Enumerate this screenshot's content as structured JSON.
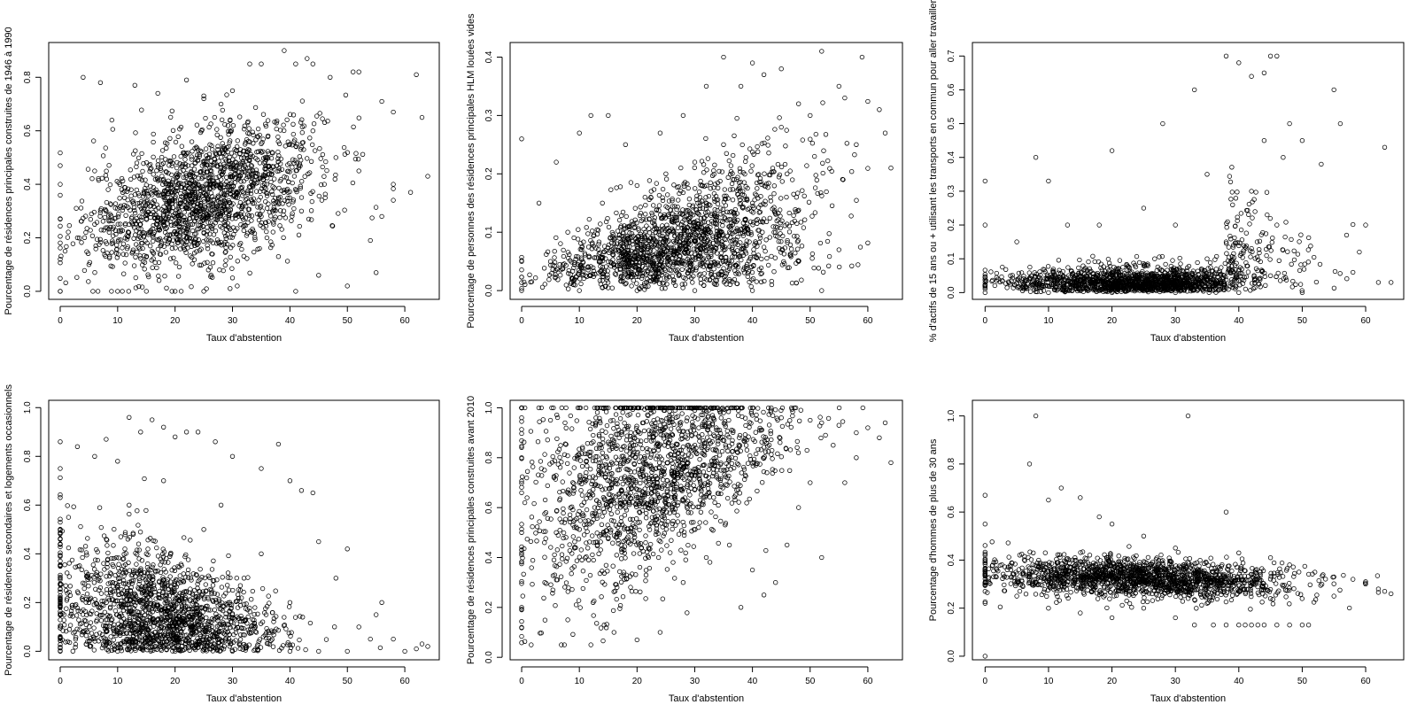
{
  "chart_data": [
    {
      "type": "scatter",
      "xlabel": "Taux d'abstention",
      "ylabel": "Pourcentage de résidences principales construites de 1946 à 1990",
      "xlim": [
        -2,
        66
      ],
      "ylim": [
        -0.03,
        0.93
      ],
      "xticks": [
        0,
        10,
        20,
        30,
        40,
        50,
        60
      ],
      "yticks": [
        0.0,
        0.2,
        0.4,
        0.6,
        0.8
      ],
      "ytick_labels": [
        "0.0",
        "0.2",
        "0.4",
        "0.6",
        "0.8"
      ],
      "points": [
        [
          0,
          0.0
        ],
        [
          0,
          0.12
        ],
        [
          0,
          0.27
        ],
        [
          0,
          0.4
        ],
        [
          0,
          0.47
        ],
        [
          4,
          0.8
        ],
        [
          7,
          0.78
        ],
        [
          9,
          0.64
        ],
        [
          13,
          0.77
        ],
        [
          17,
          0.74
        ],
        [
          22,
          0.79
        ],
        [
          25,
          0.72
        ],
        [
          28,
          0.7
        ],
        [
          30,
          0.75
        ],
        [
          33,
          0.85
        ],
        [
          35,
          0.85
        ],
        [
          39,
          0.9
        ],
        [
          41,
          0.85
        ],
        [
          43,
          0.87
        ],
        [
          44,
          0.85
        ],
        [
          47,
          0.8
        ],
        [
          51,
          0.82
        ],
        [
          52,
          0.82
        ],
        [
          56,
          0.71
        ],
        [
          58,
          0.67
        ],
        [
          62,
          0.81
        ],
        [
          63,
          0.65
        ],
        [
          64,
          0.43
        ],
        [
          61,
          0.37
        ],
        [
          58,
          0.4
        ],
        [
          56,
          0.28
        ],
        [
          55,
          0.07
        ],
        [
          54,
          0.19
        ],
        [
          50,
          0.02
        ],
        [
          45,
          0.06
        ],
        [
          41,
          0.0
        ],
        [
          38,
          0.13
        ],
        [
          36,
          0.2
        ],
        [
          35,
          0.28
        ],
        [
          10,
          0.0
        ],
        [
          15,
          0.0
        ],
        [
          20,
          0.0
        ],
        [
          25,
          0.0
        ],
        [
          30,
          0.05
        ],
        [
          5,
          0.1
        ],
        [
          3,
          0.2
        ],
        [
          8,
          0.3
        ],
        [
          12,
          0.25
        ],
        [
          18,
          0.3
        ],
        [
          24,
          0.35
        ],
        [
          28,
          0.4
        ],
        [
          32,
          0.45
        ],
        [
          36,
          0.5
        ],
        [
          40,
          0.55
        ],
        [
          44,
          0.6
        ],
        [
          48,
          0.5
        ],
        [
          52,
          0.45
        ],
        [
          46,
          0.4
        ],
        [
          42,
          0.3
        ],
        [
          38,
          0.35
        ],
        [
          26,
          0.5
        ],
        [
          22,
          0.2
        ],
        [
          16,
          0.15
        ],
        [
          6,
          0.45
        ]
      ]
    },
    {
      "type": "scatter",
      "xlabel": "Taux d'abstention",
      "ylabel": "Pourcentage de personnes des résidences principales HLM louées vides",
      "xlim": [
        -2,
        66
      ],
      "ylim": [
        -0.015,
        0.425
      ],
      "xticks": [
        0,
        10,
        20,
        30,
        40,
        50,
        60
      ],
      "yticks": [
        0.0,
        0.1,
        0.2,
        0.3,
        0.4
      ],
      "ytick_labels": [
        "0.0",
        "0.1",
        "0.2",
        "0.3",
        "0.4"
      ],
      "points": [
        [
          0,
          0.0
        ],
        [
          0,
          0.26
        ],
        [
          0,
          0.05
        ],
        [
          3,
          0.15
        ],
        [
          6,
          0.22
        ],
        [
          10,
          0.27
        ],
        [
          12,
          0.3
        ],
        [
          15,
          0.3
        ],
        [
          18,
          0.25
        ],
        [
          24,
          0.27
        ],
        [
          28,
          0.3
        ],
        [
          32,
          0.35
        ],
        [
          35,
          0.4
        ],
        [
          38,
          0.35
        ],
        [
          40,
          0.39
        ],
        [
          42,
          0.37
        ],
        [
          45,
          0.38
        ],
        [
          48,
          0.32
        ],
        [
          52,
          0.41
        ],
        [
          55,
          0.35
        ],
        [
          56,
          0.33
        ],
        [
          58,
          0.25
        ],
        [
          59,
          0.4
        ],
        [
          62,
          0.31
        ],
        [
          63,
          0.27
        ],
        [
          64,
          0.21
        ],
        [
          55,
          0.07
        ],
        [
          52,
          0.0
        ],
        [
          48,
          0.05
        ],
        [
          44,
          0.1
        ],
        [
          40,
          0.0
        ],
        [
          30,
          0.0
        ],
        [
          20,
          0.0
        ],
        [
          10,
          0.0
        ],
        [
          5,
          0.05
        ],
        [
          8,
          0.1
        ],
        [
          14,
          0.15
        ],
        [
          20,
          0.18
        ],
        [
          25,
          0.2
        ],
        [
          30,
          0.22
        ],
        [
          35,
          0.25
        ],
        [
          45,
          0.28
        ],
        [
          50,
          0.3
        ],
        [
          46,
          0.2
        ],
        [
          40,
          0.15
        ],
        [
          36,
          0.1
        ],
        [
          26,
          0.12
        ],
        [
          16,
          0.08
        ],
        [
          22,
          0.05
        ]
      ]
    },
    {
      "type": "scatter",
      "xlabel": "Taux d'abstention",
      "ylabel": "% d'actifs de 15 ans ou + utilisant les transports en commun pour aller travailler",
      "xlim": [
        -2,
        66
      ],
      "ylim": [
        -0.02,
        0.74
      ],
      "xticks": [
        0,
        10,
        20,
        30,
        40,
        50,
        60
      ],
      "yticks": [
        0.0,
        0.1,
        0.2,
        0.3,
        0.4,
        0.5,
        0.6,
        0.7
      ],
      "ytick_labels": [
        "0.0",
        "0.1",
        "0.2",
        "0.3",
        "0.4",
        "0.5",
        "0.6",
        "0.7"
      ],
      "points": [
        [
          0,
          0.0
        ],
        [
          0,
          0.33
        ],
        [
          0,
          0.2
        ],
        [
          5,
          0.15
        ],
        [
          8,
          0.4
        ],
        [
          10,
          0.33
        ],
        [
          13,
          0.2
        ],
        [
          18,
          0.2
        ],
        [
          20,
          0.42
        ],
        [
          25,
          0.25
        ],
        [
          28,
          0.5
        ],
        [
          30,
          0.2
        ],
        [
          33,
          0.6
        ],
        [
          35,
          0.35
        ],
        [
          38,
          0.7
        ],
        [
          40,
          0.68
        ],
        [
          42,
          0.64
        ],
        [
          44,
          0.65
        ],
        [
          45,
          0.7
        ],
        [
          46,
          0.7
        ],
        [
          48,
          0.5
        ],
        [
          50,
          0.45
        ],
        [
          53,
          0.38
        ],
        [
          55,
          0.6
        ],
        [
          56,
          0.5
        ],
        [
          57,
          0.17
        ],
        [
          59,
          0.12
        ],
        [
          60,
          0.2
        ],
        [
          63,
          0.43
        ],
        [
          64,
          0.03
        ],
        [
          62,
          0.03
        ],
        [
          50,
          0.0
        ],
        [
          45,
          0.05
        ],
        [
          40,
          0.0
        ],
        [
          30,
          0.0
        ],
        [
          20,
          0.0
        ],
        [
          10,
          0.0
        ],
        [
          4,
          0.05
        ],
        [
          15,
          0.05
        ],
        [
          25,
          0.08
        ],
        [
          35,
          0.1
        ],
        [
          42,
          0.3
        ],
        [
          46,
          0.2
        ],
        [
          38,
          0.15
        ],
        [
          47,
          0.4
        ],
        [
          44,
          0.45
        ]
      ]
    },
    {
      "type": "scatter",
      "xlabel": "Taux d'abstention",
      "ylabel": "Pourcentage de résidences secondaires et logements occasionnels",
      "xlim": [
        -2,
        66
      ],
      "ylim": [
        -0.035,
        1.03
      ],
      "xticks": [
        0,
        10,
        20,
        30,
        40,
        50,
        60
      ],
      "yticks": [
        0.0,
        0.2,
        0.4,
        0.6,
        0.8,
        1.0
      ],
      "ytick_labels": [
        "0.0",
        "0.2",
        "0.4",
        "0.6",
        "0.8",
        "1.0"
      ],
      "points": [
        [
          0,
          0.0
        ],
        [
          0,
          0.86
        ],
        [
          0,
          0.75
        ],
        [
          0,
          0.5
        ],
        [
          0,
          0.3
        ],
        [
          3,
          0.84
        ],
        [
          6,
          0.8
        ],
        [
          8,
          0.87
        ],
        [
          10,
          0.78
        ],
        [
          12,
          0.96
        ],
        [
          14,
          0.9
        ],
        [
          16,
          0.95
        ],
        [
          18,
          0.92
        ],
        [
          20,
          0.88
        ],
        [
          22,
          0.9
        ],
        [
          24,
          0.9
        ],
        [
          27,
          0.86
        ],
        [
          30,
          0.8
        ],
        [
          35,
          0.75
        ],
        [
          38,
          0.85
        ],
        [
          40,
          0.7
        ],
        [
          42,
          0.66
        ],
        [
          44,
          0.65
        ],
        [
          45,
          0.45
        ],
        [
          48,
          0.3
        ],
        [
          50,
          0.42
        ],
        [
          52,
          0.1
        ],
        [
          55,
          0.15
        ],
        [
          58,
          0.05
        ],
        [
          60,
          0.0
        ],
        [
          62,
          0.01
        ],
        [
          63,
          0.03
        ],
        [
          64,
          0.02
        ],
        [
          56,
          0.2
        ],
        [
          54,
          0.05
        ],
        [
          50,
          0.0
        ],
        [
          45,
          0.0
        ],
        [
          40,
          0.0
        ],
        [
          30,
          0.0
        ],
        [
          20,
          0.0
        ],
        [
          10,
          0.0
        ],
        [
          5,
          0.2
        ],
        [
          15,
          0.4
        ],
        [
          25,
          0.5
        ],
        [
          35,
          0.4
        ],
        [
          28,
          0.6
        ],
        [
          18,
          0.7
        ],
        [
          12,
          0.6
        ],
        [
          32,
          0.3
        ],
        [
          40,
          0.2
        ]
      ]
    },
    {
      "type": "scatter",
      "xlabel": "Taux d'abstention",
      "ylabel": "Pourcentage de résidences principales construites avant 2010",
      "xlim": [
        -2,
        66
      ],
      "ylim": [
        -0.01,
        1.03
      ],
      "xticks": [
        0,
        10,
        20,
        30,
        40,
        50,
        60
      ],
      "yticks": [
        0.0,
        0.2,
        0.4,
        0.6,
        0.8,
        1.0
      ],
      "ytick_labels": [
        "0.0",
        "0.2",
        "0.4",
        "0.6",
        "0.8",
        "1.0"
      ],
      "points": [
        [
          0,
          1.0
        ],
        [
          0,
          0.2
        ],
        [
          0,
          0.5
        ],
        [
          0,
          0.8
        ],
        [
          0,
          0.12
        ],
        [
          5,
          0.95
        ],
        [
          10,
          1.0
        ],
        [
          15,
          1.0
        ],
        [
          20,
          1.0
        ],
        [
          25,
          1.0
        ],
        [
          30,
          0.99
        ],
        [
          35,
          0.98
        ],
        [
          40,
          0.97
        ],
        [
          45,
          0.96
        ],
        [
          50,
          0.95
        ],
        [
          52,
          0.94
        ],
        [
          55,
          0.93
        ],
        [
          58,
          0.9
        ],
        [
          60,
          0.92
        ],
        [
          62,
          0.88
        ],
        [
          63,
          0.94
        ],
        [
          64,
          0.78
        ],
        [
          56,
          0.7
        ],
        [
          52,
          0.4
        ],
        [
          48,
          0.6
        ],
        [
          44,
          0.3
        ],
        [
          40,
          0.35
        ],
        [
          36,
          0.45
        ],
        [
          32,
          0.4
        ],
        [
          28,
          0.3
        ],
        [
          24,
          0.1
        ],
        [
          20,
          0.07
        ],
        [
          16,
          0.1
        ],
        [
          12,
          0.05
        ],
        [
          8,
          0.15
        ],
        [
          4,
          0.3
        ],
        [
          6,
          0.5
        ],
        [
          10,
          0.7
        ],
        [
          14,
          0.8
        ],
        [
          18,
          0.6
        ],
        [
          22,
          0.4
        ],
        [
          26,
          0.7
        ],
        [
          30,
          0.85
        ],
        [
          35,
          0.75
        ],
        [
          38,
          0.2
        ],
        [
          42,
          0.25
        ],
        [
          46,
          0.45
        ],
        [
          50,
          0.7
        ],
        [
          54,
          0.85
        ],
        [
          58,
          0.8
        ]
      ]
    },
    {
      "type": "scatter",
      "xlabel": "Taux d'abstention",
      "ylabel": "Pourcentage d'hommes de plus de 30 ans",
      "xlim": [
        -2,
        66
      ],
      "ylim": [
        -0.015,
        1.065
      ],
      "xticks": [
        0,
        10,
        20,
        30,
        40,
        50,
        60
      ],
      "yticks": [
        0.0,
        0.2,
        0.4,
        0.6,
        0.8,
        1.0
      ],
      "ytick_labels": [
        "0.0",
        "0.2",
        "0.4",
        "0.6",
        "0.8",
        "1.0"
      ],
      "points": [
        [
          0,
          0.0
        ],
        [
          0,
          0.67
        ],
        [
          0,
          0.55
        ],
        [
          0,
          0.27
        ],
        [
          0,
          0.22
        ],
        [
          8,
          1.0
        ],
        [
          32,
          1.0
        ],
        [
          7,
          0.8
        ],
        [
          10,
          0.65
        ],
        [
          12,
          0.7
        ],
        [
          15,
          0.66
        ],
        [
          18,
          0.58
        ],
        [
          20,
          0.55
        ],
        [
          25,
          0.5
        ],
        [
          30,
          0.45
        ],
        [
          38,
          0.6
        ],
        [
          40,
          0.43
        ],
        [
          45,
          0.41
        ],
        [
          48,
          0.38
        ],
        [
          52,
          0.35
        ],
        [
          55,
          0.33
        ],
        [
          58,
          0.32
        ],
        [
          60,
          0.31
        ],
        [
          62,
          0.28
        ],
        [
          63,
          0.27
        ],
        [
          64,
          0.26
        ],
        [
          33,
          0.13
        ],
        [
          36,
          0.13
        ],
        [
          38,
          0.13
        ],
        [
          40,
          0.13
        ],
        [
          41,
          0.13
        ],
        [
          42,
          0.13
        ],
        [
          43,
          0.13
        ],
        [
          44,
          0.13
        ],
        [
          46,
          0.13
        ],
        [
          48,
          0.13
        ],
        [
          50,
          0.13
        ],
        [
          51,
          0.13
        ],
        [
          30,
          0.16
        ],
        [
          20,
          0.16
        ],
        [
          15,
          0.18
        ],
        [
          10,
          0.2
        ],
        [
          5,
          0.25
        ],
        [
          25,
          0.2
        ],
        [
          35,
          0.22
        ],
        [
          45,
          0.24
        ],
        [
          55,
          0.25
        ],
        [
          60,
          0.3
        ]
      ]
    }
  ]
}
